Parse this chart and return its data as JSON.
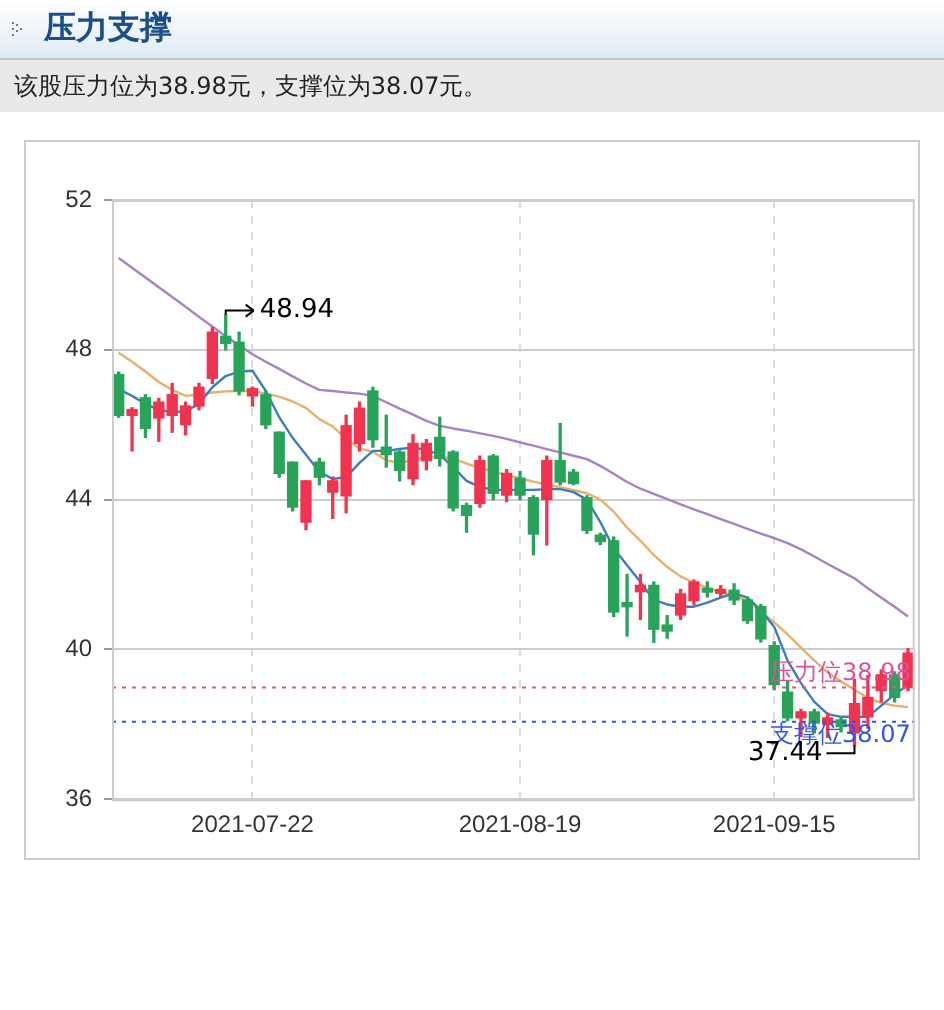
{
  "chart_data": {
    "type": "candlestick",
    "title": "压力支撑",
    "subtitle": "该股压力位为38.98元，支撑位为38.07元。",
    "categories": [
      null,
      null,
      null,
      null,
      null,
      null,
      null,
      null,
      null,
      null,
      "2021-07-22",
      null,
      null,
      null,
      null,
      null,
      null,
      null,
      null,
      null,
      null,
      null,
      null,
      null,
      null,
      null,
      null,
      null,
      null,
      null,
      "2021-08-19",
      null,
      null,
      null,
      null,
      null,
      null,
      null,
      null,
      null,
      null,
      null,
      null,
      null,
      null,
      null,
      null,
      null,
      null,
      "2021-09-15",
      null,
      null,
      null,
      null,
      null,
      null,
      null,
      null,
      null,
      null
    ],
    "ohlc": [
      [
        47.34,
        47.4,
        46.2,
        46.25
      ],
      [
        46.25,
        46.45,
        45.3,
        46.4
      ],
      [
        46.72,
        46.8,
        45.66,
        45.9
      ],
      [
        46.18,
        46.7,
        45.56,
        46.6
      ],
      [
        46.25,
        47.1,
        45.8,
        46.8
      ],
      [
        46.0,
        46.6,
        45.73,
        46.5
      ],
      [
        46.5,
        47.1,
        46.4,
        47.0
      ],
      [
        47.24,
        48.6,
        47.1,
        48.47
      ],
      [
        48.36,
        48.94,
        48.0,
        48.17
      ],
      [
        48.2,
        48.47,
        46.8,
        46.9
      ],
      [
        46.77,
        47.0,
        46.5,
        46.96
      ],
      [
        46.8,
        46.9,
        45.9,
        46.0
      ],
      [
        45.8,
        45.8,
        44.6,
        44.7
      ],
      [
        45.0,
        45.0,
        43.7,
        43.8
      ],
      [
        43.4,
        44.5,
        43.2,
        44.5
      ],
      [
        45.0,
        45.1,
        44.4,
        44.6
      ],
      [
        44.2,
        44.6,
        43.5,
        44.5
      ],
      [
        44.1,
        46.25,
        43.65,
        45.97
      ],
      [
        45.5,
        46.6,
        45.3,
        46.44
      ],
      [
        46.9,
        47.0,
        45.4,
        45.6
      ],
      [
        45.4,
        46.25,
        44.87,
        45.2
      ],
      [
        45.27,
        45.3,
        44.5,
        44.78
      ],
      [
        44.56,
        45.73,
        44.4,
        45.5
      ],
      [
        45.04,
        45.6,
        44.8,
        45.5
      ],
      [
        45.66,
        46.2,
        44.9,
        45.1
      ],
      [
        45.27,
        45.3,
        43.7,
        43.78
      ],
      [
        43.84,
        43.9,
        43.13,
        43.58
      ],
      [
        43.9,
        45.16,
        43.8,
        45.04
      ],
      [
        45.16,
        45.2,
        44.0,
        44.17
      ],
      [
        44.12,
        44.8,
        43.95,
        44.7
      ],
      [
        44.57,
        44.75,
        44.0,
        44.12
      ],
      [
        44.05,
        44.1,
        42.53,
        43.08
      ],
      [
        44.0,
        45.16,
        42.79,
        45.04
      ],
      [
        45.04,
        46.03,
        44.4,
        44.47
      ],
      [
        44.73,
        44.8,
        44.4,
        44.43
      ],
      [
        44.05,
        44.1,
        43.1,
        43.18
      ],
      [
        43.05,
        43.1,
        42.8,
        42.88
      ],
      [
        42.9,
        43.0,
        40.88,
        41.0
      ],
      [
        41.25,
        42.0,
        40.36,
        41.14
      ],
      [
        41.54,
        42.0,
        40.8,
        41.71
      ],
      [
        41.71,
        41.8,
        40.19,
        40.54
      ],
      [
        40.65,
        40.9,
        40.3,
        40.49
      ],
      [
        40.92,
        41.6,
        40.8,
        41.48
      ],
      [
        41.3,
        41.85,
        41.2,
        41.8
      ],
      [
        41.63,
        41.8,
        41.4,
        41.53
      ],
      [
        41.5,
        41.7,
        41.4,
        41.6
      ],
      [
        41.58,
        41.75,
        41.2,
        41.32
      ],
      [
        41.32,
        41.4,
        40.7,
        40.77
      ],
      [
        41.14,
        41.2,
        40.2,
        40.28
      ],
      [
        40.1,
        40.2,
        38.93,
        39.06
      ],
      [
        38.86,
        39.16,
        38.1,
        38.17
      ],
      [
        38.17,
        38.4,
        37.68,
        38.33
      ],
      [
        38.33,
        38.4,
        37.77,
        38.03
      ],
      [
        37.99,
        38.3,
        37.65,
        38.17
      ],
      [
        38.12,
        38.2,
        37.8,
        37.94
      ],
      [
        37.77,
        39.2,
        37.44,
        38.55
      ],
      [
        38.2,
        39.3,
        37.9,
        38.72
      ],
      [
        38.9,
        39.45,
        38.6,
        39.32
      ],
      [
        39.32,
        39.4,
        38.6,
        38.72
      ],
      [
        38.98,
        40.02,
        38.9,
        39.9
      ]
    ],
    "colors": [
      "#2aa35a",
      "#f0334f",
      "#2aa35a",
      "#f0334f",
      "#f0334f",
      "#f0334f",
      "#f0334f",
      "#f0334f",
      "#2aa35a",
      "#2aa35a",
      "#f0334f",
      "#2aa35a",
      "#2aa35a",
      "#2aa35a",
      "#f0334f",
      "#2aa35a",
      "#f0334f",
      "#f0334f",
      "#f0334f",
      "#2aa35a",
      "#2aa35a",
      "#2aa35a",
      "#f0334f",
      "#f0334f",
      "#2aa35a",
      "#2aa35a",
      "#2aa35a",
      "#f0334f",
      "#2aa35a",
      "#f0334f",
      "#2aa35a",
      "#2aa35a",
      "#f0334f",
      "#2aa35a",
      "#2aa35a",
      "#2aa35a",
      "#2aa35a",
      "#2aa35a",
      "#2aa35a",
      "#f0334f",
      "#2aa35a",
      "#2aa35a",
      "#f0334f",
      "#f0334f",
      "#2aa35a",
      "#f0334f",
      "#2aa35a",
      "#2aa35a",
      "#2aa35a",
      "#2aa35a",
      "#2aa35a",
      "#f0334f",
      "#2aa35a",
      "#f0334f",
      "#2aa35a",
      "#f0334f",
      "#f0334f",
      "#f0334f",
      "#2aa35a",
      "#f0334f"
    ],
    "series": [
      {
        "type": "line",
        "color": "#3d7cc0",
        "values": [
          46.95,
          46.77,
          46.55,
          46.4,
          46.34,
          46.36,
          46.55,
          47.0,
          47.3,
          47.42,
          47.44,
          46.9,
          46.2,
          45.65,
          45.2,
          44.74,
          44.55,
          44.6,
          44.98,
          45.3,
          45.3,
          45.35,
          45.39,
          45.32,
          45.2,
          44.87,
          44.5,
          44.34,
          44.26,
          44.26,
          44.26,
          44.26,
          44.28,
          44.28,
          44.2,
          44.0,
          43.4,
          42.7,
          42.25,
          41.8,
          41.32,
          41.2,
          41.14,
          41.14,
          41.25,
          41.38,
          41.5,
          41.38,
          41.05,
          40.6,
          39.7,
          39.1,
          38.6,
          38.27,
          38.2,
          38.2,
          38.2,
          38.5,
          38.8,
          39.05
        ]
      },
      {
        "type": "line",
        "color": "#e8b06a",
        "values": [
          47.92,
          47.68,
          47.42,
          47.14,
          46.93,
          46.77,
          46.8,
          46.86,
          46.89,
          46.9,
          46.9,
          46.83,
          46.75,
          46.62,
          46.45,
          46.15,
          45.95,
          45.63,
          45.36,
          45.28,
          45.05,
          44.97,
          45.07,
          45.13,
          45.13,
          45.1,
          44.96,
          44.85,
          44.75,
          44.65,
          44.57,
          44.48,
          44.4,
          44.33,
          44.25,
          44.17,
          44.0,
          43.68,
          43.25,
          42.9,
          42.52,
          42.2,
          41.95,
          41.78,
          41.64,
          41.53,
          41.44,
          41.3,
          41.0,
          40.72,
          40.4,
          40.05,
          39.7,
          39.38,
          39.14,
          38.92,
          38.7,
          38.57,
          38.5,
          38.46
        ]
      },
      {
        "type": "line",
        "color": "#a683c4",
        "values": [
          50.45,
          50.19,
          49.93,
          49.67,
          49.41,
          49.15,
          48.88,
          48.62,
          48.36,
          48.12,
          47.88,
          47.68,
          47.49,
          47.29,
          47.1,
          46.93,
          46.9,
          46.86,
          46.83,
          46.77,
          46.6,
          46.43,
          46.27,
          46.1,
          45.97,
          45.9,
          45.84,
          45.77,
          45.7,
          45.62,
          45.53,
          45.44,
          45.35,
          45.26,
          45.17,
          45.08,
          44.9,
          44.69,
          44.47,
          44.29,
          44.15,
          44.01,
          43.87,
          43.74,
          43.61,
          43.48,
          43.35,
          43.22,
          43.09,
          42.97,
          42.84,
          42.67,
          42.48,
          42.28,
          42.09,
          41.9,
          41.63,
          41.38,
          41.14,
          40.88
        ]
      }
    ],
    "ylim": [
      36,
      52
    ],
    "yticks": [
      36,
      40,
      44,
      48,
      52
    ],
    "grid": true,
    "legend": false,
    "marker": "none",
    "ref_lines": [
      {
        "axis": "y",
        "value": 38.98,
        "label": "压力位38.98",
        "color": "#e0509f",
        "line_style": "dotted"
      },
      {
        "axis": "y",
        "value": 38.07,
        "label": "支撑位38.07",
        "color": "#2f55e8",
        "line_style": "dotted"
      }
    ],
    "annotations": [
      "48.94",
      "37.44"
    ]
  }
}
